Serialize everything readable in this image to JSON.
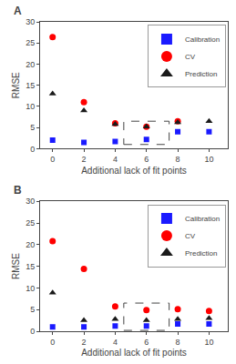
{
  "chart_data": [
    {
      "type": "scatter",
      "title": "A",
      "x": [
        0,
        2,
        4,
        6,
        8,
        10
      ],
      "series": [
        {
          "name": "Calibration",
          "color": "#1a1aff",
          "marker": "square",
          "values": [
            2.0,
            1.5,
            1.7,
            2.2,
            4.0,
            4.0
          ]
        },
        {
          "name": "CV",
          "color": "#ff0000",
          "marker": "circle",
          "values": [
            26.4,
            11.0,
            6.0,
            5.2,
            6.5,
            null
          ]
        },
        {
          "name": "Prediction",
          "color": "#1a1a1a",
          "marker": "triangle-up",
          "values": [
            13.0,
            9.0,
            5.8,
            5.2,
            6.2,
            6.5
          ]
        }
      ],
      "box": {
        "x": 4.55,
        "y": 1.0,
        "width": 2.9,
        "height": 5.5
      },
      "xlim": [
        -0.8,
        11.2
      ],
      "xticks": [
        0,
        2,
        4,
        6,
        8,
        10
      ],
      "ylim": [
        0,
        30
      ],
      "yticks": [
        0,
        5,
        10,
        15,
        20,
        25,
        30
      ],
      "xlabel": "Additional lack of fit points",
      "ylabel": "RMSE",
      "legend": "upper right",
      "grid": false
    },
    {
      "type": "scatter",
      "title": "B",
      "x": [
        0,
        2,
        4,
        6,
        8,
        10
      ],
      "series": [
        {
          "name": "Calibration",
          "color": "#1a1aff",
          "marker": "square",
          "values": [
            1.0,
            1.0,
            1.2,
            1.2,
            1.7,
            1.7
          ]
        },
        {
          "name": "CV",
          "color": "#ff0000",
          "marker": "circle",
          "values": [
            20.8,
            14.4,
            5.7,
            4.9,
            5.1,
            4.7
          ]
        },
        {
          "name": "Prediction",
          "color": "#1a1a1a",
          "marker": "triangle-up",
          "values": [
            8.9,
            2.5,
            2.8,
            2.5,
            2.8,
            3.0
          ]
        }
      ],
      "box": {
        "x": 4.55,
        "y": 0.2,
        "width": 2.9,
        "height": 6.3
      },
      "xlim": [
        -0.8,
        11.2
      ],
      "xticks": [
        0,
        2,
        4,
        6,
        8,
        10
      ],
      "ylim": [
        0,
        30
      ],
      "yticks": [
        0,
        5,
        10,
        15,
        20,
        25,
        30
      ],
      "xlabel": "Additional lack of fit points",
      "ylabel": "RMSE",
      "legend": "upper right",
      "grid": false
    }
  ]
}
